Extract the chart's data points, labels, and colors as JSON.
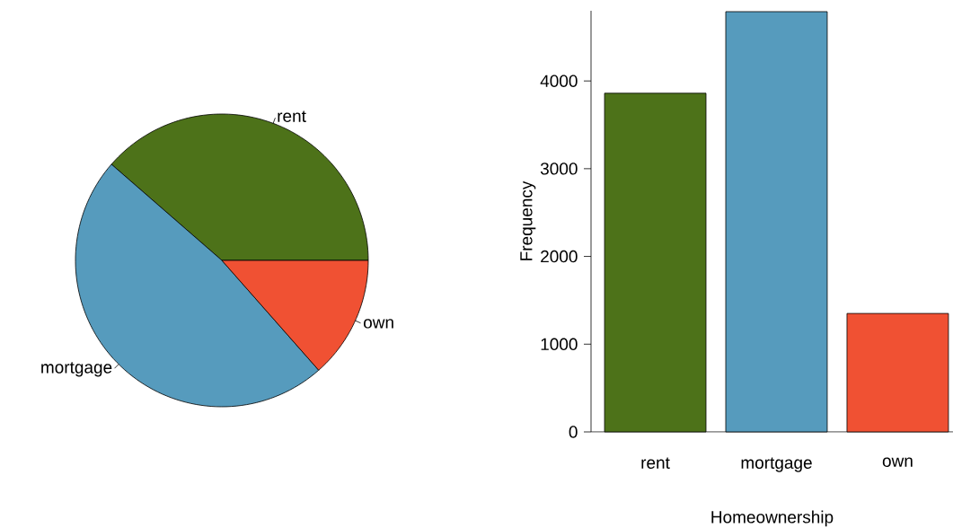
{
  "chart_data": [
    {
      "type": "pie",
      "categories": [
        "rent",
        "mortgage",
        "own"
      ],
      "values": [
        38.6,
        47.9,
        13.5
      ],
      "colors": [
        "#4d7219",
        "#569bbd",
        "#f05133"
      ]
    },
    {
      "type": "bar",
      "categories": [
        "rent",
        "mortgage",
        "own"
      ],
      "values": [
        3860,
        4790,
        1350
      ],
      "colors": [
        "#4d7219",
        "#569bbd",
        "#f05133"
      ],
      "xlabel": "Homeownership",
      "ylabel": "Frequency",
      "ylim": [
        0,
        4800
      ],
      "yticks": [
        0,
        1000,
        2000,
        3000,
        4000
      ]
    }
  ]
}
